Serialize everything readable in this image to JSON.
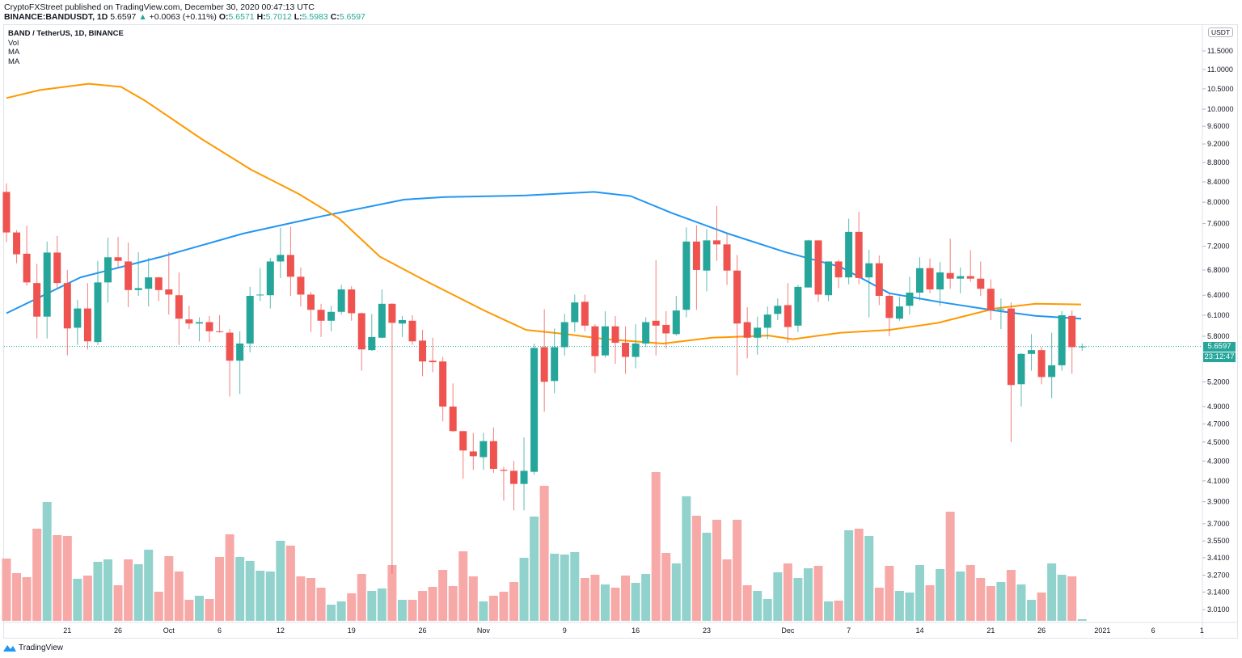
{
  "header": {
    "publisher_line": "CryptoFXStreet published on TradingView.com, December 30, 2020 00:47:13 UTC",
    "symbol": "BINANCE:BANDUSDT, 1D",
    "last": "5.6597",
    "change": "+0.0063 (+0.11%)",
    "o_label": "O:",
    "o": "5.6571",
    "h_label": "H:",
    "h": "5.7012",
    "l_label": "L:",
    "l": "5.5983",
    "c_label": "C:",
    "c": "5.6597"
  },
  "legend": {
    "title": "BAND / TetherUS, 1D, BINANCE",
    "items": [
      "Vol",
      "MA",
      "MA"
    ]
  },
  "price_axis": {
    "currency": "USDT",
    "last_price_label": "5.6597",
    "countdown": "23:12:47"
  },
  "footer": {
    "brand": "TradingView"
  },
  "colors": {
    "up": "#26a69a",
    "down": "#ef5350",
    "vol_up": "#92d2cc",
    "vol_down": "#f7a9a7",
    "ma_blue": "#2196f3",
    "ma_orange": "#ff9800"
  },
  "chart_data": {
    "type": "candlestick",
    "title": "BAND / TetherUS, 1D, BINANCE",
    "scale": "log",
    "start_date": "2020-09-15",
    "ylim": [
      2.95,
      12.2
    ],
    "yticks": [
      "11.5000",
      "11.0000",
      "10.5000",
      "10.0000",
      "9.6000",
      "9.2000",
      "8.8000",
      "8.4000",
      "8.0000",
      "7.6000",
      "7.2000",
      "6.8000",
      "6.4000",
      "6.1000",
      "5.8000",
      "5.2000",
      "4.9000",
      "4.7000",
      "4.5000",
      "4.3000",
      "4.1000",
      "3.9000",
      "3.7000",
      "3.5500",
      "3.4100",
      "3.2700",
      "3.1400",
      "3.0100"
    ],
    "xticks": [
      {
        "day": 6,
        "label": "21"
      },
      {
        "day": 11,
        "label": "26"
      },
      {
        "day": 16,
        "label": "Oct"
      },
      {
        "day": 21,
        "label": "6"
      },
      {
        "day": 27,
        "label": "12"
      },
      {
        "day": 34,
        "label": "19"
      },
      {
        "day": 41,
        "label": "26"
      },
      {
        "day": 47,
        "label": "Nov"
      },
      {
        "day": 55,
        "label": "9"
      },
      {
        "day": 62,
        "label": "16"
      },
      {
        "day": 69,
        "label": "23"
      },
      {
        "day": 77,
        "label": "Dec"
      },
      {
        "day": 83,
        "label": "7"
      },
      {
        "day": 90,
        "label": "14"
      },
      {
        "day": 97,
        "label": "21"
      },
      {
        "day": 102,
        "label": "26"
      },
      {
        "day": 108,
        "label": "2021"
      },
      {
        "day": 113,
        "label": "6"
      },
      {
        "day": 117.8,
        "label": "1"
      }
    ],
    "candle_fields": [
      "open",
      "high",
      "low",
      "close",
      "volume_rel"
    ],
    "candles": [
      [
        8.2,
        8.37,
        7.27,
        7.44,
        77
      ],
      [
        7.44,
        7.48,
        6.91,
        7.06,
        59
      ],
      [
        7.07,
        7.56,
        6.55,
        6.6,
        54
      ],
      [
        6.59,
        6.9,
        5.77,
        6.08,
        114
      ],
      [
        6.08,
        7.28,
        5.77,
        7.09,
        147
      ],
      [
        7.09,
        7.38,
        6.5,
        6.59,
        106
      ],
      [
        6.59,
        6.8,
        5.54,
        5.91,
        105
      ],
      [
        5.92,
        6.33,
        5.68,
        6.2,
        52
      ],
      [
        6.2,
        6.59,
        5.62,
        5.73,
        56
      ],
      [
        5.72,
        6.95,
        5.68,
        6.6,
        73
      ],
      [
        6.6,
        7.35,
        6.29,
        7.01,
        76
      ],
      [
        7.01,
        7.36,
        6.83,
        6.95,
        44
      ],
      [
        6.94,
        7.26,
        6.22,
        6.48,
        76
      ],
      [
        6.48,
        7.1,
        6.39,
        6.51,
        70
      ],
      [
        6.5,
        7.0,
        6.23,
        6.68,
        88
      ],
      [
        6.68,
        6.69,
        6.31,
        6.48,
        36
      ],
      [
        6.49,
        7.1,
        6.11,
        6.41,
        80
      ],
      [
        6.4,
        6.76,
        5.68,
        6.05,
        61
      ],
      [
        6.04,
        6.24,
        5.9,
        5.98,
        26
      ],
      [
        5.98,
        6.07,
        5.73,
        6.0,
        31
      ],
      [
        6.0,
        6.09,
        5.72,
        5.87,
        27
      ],
      [
        5.87,
        6.1,
        5.85,
        5.86,
        79
      ],
      [
        5.85,
        5.9,
        5.02,
        5.47,
        107
      ],
      [
        5.47,
        5.87,
        5.05,
        5.7,
        79
      ],
      [
        5.7,
        6.53,
        5.58,
        6.39,
        74
      ],
      [
        6.4,
        6.83,
        6.31,
        6.41,
        62
      ],
      [
        6.4,
        7.0,
        6.2,
        6.94,
        61
      ],
      [
        6.94,
        7.52,
        6.67,
        7.05,
        99
      ],
      [
        7.05,
        7.54,
        6.39,
        6.69,
        93
      ],
      [
        6.69,
        6.84,
        6.23,
        6.41,
        55
      ],
      [
        6.41,
        6.45,
        5.86,
        6.18,
        53
      ],
      [
        6.18,
        6.27,
        5.79,
        6.02,
        41
      ],
      [
        6.02,
        6.24,
        5.87,
        6.15,
        20
      ],
      [
        6.15,
        6.56,
        6.11,
        6.49,
        24
      ],
      [
        6.49,
        6.54,
        6.02,
        6.13,
        34
      ],
      [
        6.13,
        6.14,
        5.34,
        5.62,
        58
      ],
      [
        5.61,
        6.12,
        5.6,
        5.79,
        37
      ],
      [
        5.78,
        6.49,
        5.77,
        6.27,
        40
      ],
      [
        6.27,
        6.28,
        3.28,
        5.99,
        69
      ],
      [
        5.98,
        6.09,
        5.79,
        6.03,
        26
      ],
      [
        6.02,
        6.1,
        5.68,
        5.73,
        26
      ],
      [
        5.74,
        5.89,
        5.27,
        5.46,
        37
      ],
      [
        5.47,
        5.78,
        5.32,
        5.45,
        42
      ],
      [
        5.46,
        5.52,
        4.73,
        4.9,
        63
      ],
      [
        4.9,
        5.18,
        4.61,
        4.62,
        43
      ],
      [
        4.62,
        4.62,
        4.12,
        4.41,
        86
      ],
      [
        4.4,
        4.6,
        4.21,
        4.35,
        55
      ],
      [
        4.34,
        4.6,
        4.21,
        4.51,
        24
      ],
      [
        4.51,
        4.66,
        4.18,
        4.22,
        31
      ],
      [
        4.21,
        4.24,
        3.91,
        4.2,
        36
      ],
      [
        4.2,
        4.3,
        3.82,
        4.07,
        48
      ],
      [
        4.07,
        4.55,
        3.82,
        4.2,
        78
      ],
      [
        4.19,
        5.7,
        4.16,
        5.64,
        129
      ],
      [
        5.65,
        6.19,
        4.84,
        5.2,
        167
      ],
      [
        5.21,
        5.91,
        5.06,
        5.65,
        83
      ],
      [
        5.65,
        6.12,
        5.54,
        6.0,
        82
      ],
      [
        6.0,
        6.41,
        5.86,
        6.29,
        85
      ],
      [
        6.3,
        6.41,
        5.87,
        5.95,
        53
      ],
      [
        5.94,
        5.97,
        5.31,
        5.53,
        57
      ],
      [
        5.54,
        6.16,
        5.51,
        5.94,
        45
      ],
      [
        5.94,
        6.09,
        5.43,
        5.71,
        41
      ],
      [
        5.71,
        5.94,
        5.3,
        5.52,
        56
      ],
      [
        5.52,
        5.97,
        5.37,
        5.7,
        47
      ],
      [
        5.7,
        6.07,
        5.65,
        6.0,
        58
      ],
      [
        6.02,
        6.96,
        5.54,
        5.95,
        184
      ],
      [
        5.96,
        6.16,
        5.63,
        5.84,
        84
      ],
      [
        5.83,
        6.39,
        5.81,
        6.17,
        71
      ],
      [
        6.18,
        7.53,
        6.07,
        7.28,
        154
      ],
      [
        7.28,
        7.57,
        6.18,
        6.8,
        130
      ],
      [
        6.79,
        7.5,
        6.46,
        7.3,
        109
      ],
      [
        7.3,
        7.93,
        6.95,
        7.23,
        125
      ],
      [
        7.23,
        7.41,
        6.56,
        6.79,
        76
      ],
      [
        6.79,
        7.05,
        5.28,
        5.98,
        125
      ],
      [
        6.0,
        6.22,
        5.5,
        5.78,
        44
      ],
      [
        5.78,
        6.08,
        5.55,
        5.92,
        37
      ],
      [
        5.92,
        6.23,
        5.76,
        6.11,
        27
      ],
      [
        6.12,
        6.35,
        6.03,
        6.24,
        60
      ],
      [
        6.25,
        6.59,
        5.71,
        5.93,
        71
      ],
      [
        5.95,
        6.56,
        5.86,
        6.53,
        53
      ],
      [
        6.52,
        7.31,
        6.52,
        7.3,
        65
      ],
      [
        7.3,
        7.3,
        6.3,
        6.41,
        68
      ],
      [
        6.4,
        6.94,
        6.31,
        6.94,
        24
      ],
      [
        6.94,
        6.97,
        6.51,
        6.68,
        25
      ],
      [
        6.68,
        7.69,
        6.57,
        7.45,
        112
      ],
      [
        7.45,
        7.82,
        6.57,
        6.67,
        114
      ],
      [
        6.68,
        7.14,
        6.07,
        6.91,
        105
      ],
      [
        6.91,
        7.04,
        6.25,
        6.39,
        41
      ],
      [
        6.39,
        6.43,
        5.8,
        6.06,
        68
      ],
      [
        6.05,
        6.38,
        6.02,
        6.23,
        37
      ],
      [
        6.24,
        6.69,
        6.11,
        6.44,
        35
      ],
      [
        6.44,
        7.01,
        6.32,
        6.83,
        69
      ],
      [
        6.83,
        6.99,
        6.43,
        6.49,
        44
      ],
      [
        6.49,
        6.93,
        6.24,
        6.76,
        64
      ],
      [
        6.75,
        7.33,
        6.5,
        6.66,
        135
      ],
      [
        6.66,
        6.84,
        6.43,
        6.7,
        61
      ],
      [
        6.7,
        7.13,
        6.61,
        6.66,
        69
      ],
      [
        6.66,
        6.94,
        6.39,
        6.5,
        53
      ],
      [
        6.5,
        6.65,
        6.03,
        6.17,
        43
      ],
      [
        6.18,
        6.35,
        5.9,
        6.19,
        48
      ],
      [
        6.2,
        6.29,
        4.5,
        5.16,
        63
      ],
      [
        5.17,
        5.57,
        4.9,
        5.56,
        45
      ],
      [
        5.56,
        5.83,
        5.34,
        5.61,
        26
      ],
      [
        5.61,
        5.65,
        5.17,
        5.26,
        35
      ],
      [
        5.26,
        5.85,
        5.0,
        5.41,
        71
      ],
      [
        5.41,
        6.16,
        5.34,
        6.1,
        57
      ],
      [
        6.09,
        6.17,
        5.3,
        5.65,
        55
      ],
      [
        5.6571,
        5.7012,
        5.5983,
        5.6597,
        2
      ]
    ],
    "series": [
      {
        "name": "MA (blue)",
        "points_day_value": [
          [
            0,
            6.13
          ],
          [
            7.3,
            6.68
          ],
          [
            15.3,
            7.02
          ],
          [
            23.3,
            7.42
          ],
          [
            31.2,
            7.74
          ],
          [
            39.2,
            8.05
          ],
          [
            43.2,
            8.1
          ],
          [
            51.2,
            8.13
          ],
          [
            57.9,
            8.2
          ],
          [
            61.5,
            8.12
          ],
          [
            65.5,
            7.8
          ],
          [
            71.1,
            7.42
          ],
          [
            76.7,
            7.1
          ],
          [
            82.2,
            6.85
          ],
          [
            87,
            6.43
          ],
          [
            91.8,
            6.3
          ],
          [
            97.4,
            6.17
          ],
          [
            101.4,
            6.09
          ],
          [
            105.9,
            6.05
          ]
        ]
      },
      {
        "name": "MA (orange)",
        "points_day_value": [
          [
            0,
            10.27
          ],
          [
            3.3,
            10.47
          ],
          [
            8.1,
            10.63
          ],
          [
            11.3,
            10.55
          ],
          [
            13.7,
            10.2
          ],
          [
            19.3,
            9.3
          ],
          [
            24.1,
            8.65
          ],
          [
            28.8,
            8.16
          ],
          [
            32.8,
            7.69
          ],
          [
            36.8,
            7.02
          ],
          [
            41.6,
            6.6
          ],
          [
            47.2,
            6.16
          ],
          [
            51.2,
            5.89
          ],
          [
            55.1,
            5.83
          ],
          [
            59.1,
            5.76
          ],
          [
            64.7,
            5.7
          ],
          [
            69.5,
            5.78
          ],
          [
            75.1,
            5.81
          ],
          [
            77.5,
            5.76
          ],
          [
            82.2,
            5.85
          ],
          [
            87,
            5.89
          ],
          [
            91.8,
            5.99
          ],
          [
            97.4,
            6.2
          ],
          [
            101.4,
            6.27
          ],
          [
            105.9,
            6.26
          ]
        ]
      }
    ]
  }
}
